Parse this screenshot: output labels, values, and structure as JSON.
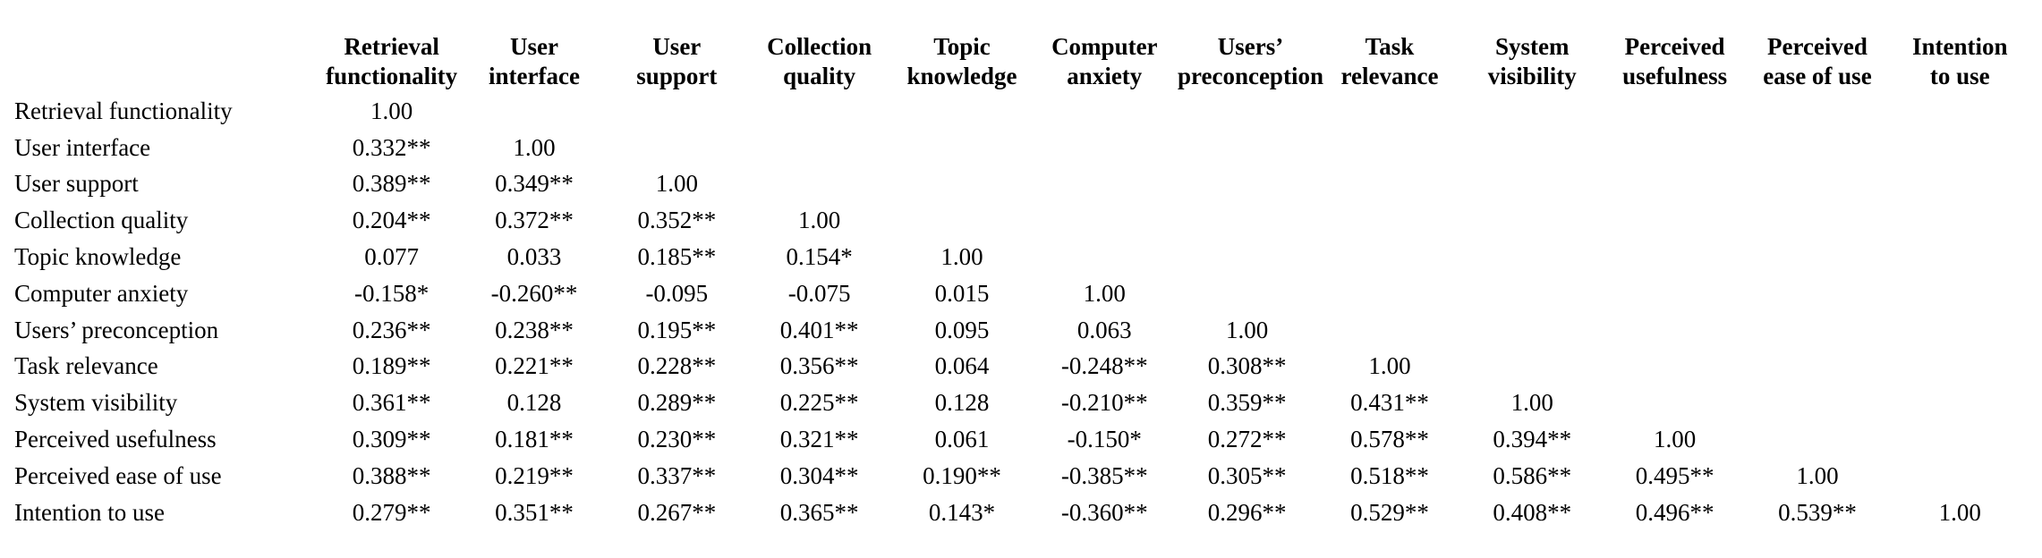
{
  "table": {
    "columns": [
      "Retrieval\nfunctionality",
      "User\ninterface",
      "User\nsupport",
      "Collection\nquality",
      "Topic\nknowledge",
      "Computer\nanxiety",
      "Users’\npreconception",
      "Task\nrelevance",
      "System\nvisibility",
      "Perceived\nusefulness",
      "Perceived\nease of use",
      "Intention\nto use"
    ],
    "rows": [
      {
        "label": "Retrieval functionality",
        "values": [
          "1.00"
        ]
      },
      {
        "label": "User interface",
        "values": [
          "0.332**",
          "1.00"
        ]
      },
      {
        "label": "User support",
        "values": [
          "0.389**",
          "0.349**",
          "1.00"
        ]
      },
      {
        "label": "Collection quality",
        "values": [
          "0.204**",
          "0.372**",
          "0.352**",
          "1.00"
        ]
      },
      {
        "label": "Topic knowledge",
        "values": [
          "0.077",
          "0.033",
          "0.185**",
          "0.154*",
          "1.00"
        ]
      },
      {
        "label": "Computer anxiety",
        "values": [
          "-0.158*",
          "-0.260**",
          "-0.095",
          "-0.075",
          "0.015",
          "1.00"
        ]
      },
      {
        "label": "Users’ preconception",
        "values": [
          "0.236**",
          "0.238**",
          "0.195**",
          "0.401**",
          "0.095",
          "0.063",
          "1.00"
        ]
      },
      {
        "label": "Task relevance",
        "values": [
          "0.189**",
          "0.221**",
          "0.228**",
          "0.356**",
          "0.064",
          "-0.248**",
          "0.308**",
          "1.00"
        ]
      },
      {
        "label": "System visibility",
        "values": [
          "0.361**",
          "0.128",
          "0.289**",
          "0.225**",
          "0.128",
          "-0.210**",
          "0.359**",
          "0.431**",
          "1.00"
        ]
      },
      {
        "label": "Perceived usefulness",
        "values": [
          "0.309**",
          "0.181**",
          "0.230**",
          "0.321**",
          "0.061",
          "-0.150*",
          "0.272**",
          "0.578**",
          "0.394**",
          "1.00"
        ]
      },
      {
        "label": "Perceived ease of use",
        "values": [
          "0.388**",
          "0.219**",
          "0.337**",
          "0.304**",
          "0.190**",
          "-0.385**",
          "0.305**",
          "0.518**",
          "0.586**",
          "0.495**",
          "1.00"
        ]
      },
      {
        "label": "Intention to use",
        "values": [
          "0.279**",
          "0.351**",
          "0.267**",
          "0.365**",
          "0.143*",
          "-0.360**",
          "0.296**",
          "0.529**",
          "0.408**",
          "0.496**",
          "0.539**",
          "1.00"
        ]
      }
    ]
  }
}
